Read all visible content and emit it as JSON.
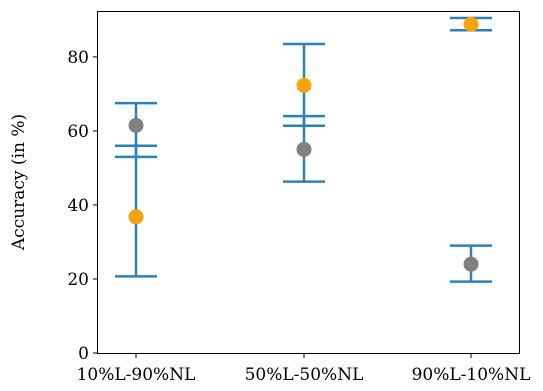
{
  "colors": {
    "errorbar": "#2a82b5",
    "series_orange": "#f5a40c",
    "series_gray": "#808080",
    "axis": "#000000"
  },
  "chart_data": {
    "type": "scatter",
    "ylabel": "Accuracy (in %)",
    "xlabel": "",
    "title": "",
    "ylim": [
      0,
      92.4
    ],
    "yticks": [
      0,
      20,
      40,
      60,
      80
    ],
    "categories": [
      "10%L-90%NL",
      "50%L-50%NL",
      "90%L-10%NL"
    ],
    "grid": false,
    "legend": "none",
    "series": [
      {
        "color_key": "series_gray",
        "points": [
          {
            "category": "10%L-90%NL",
            "value": 61.5,
            "err_low": 53.0,
            "err_high": 67.5
          },
          {
            "category": "50%L-50%NL",
            "value": 55.0,
            "err_low": 46.3,
            "err_high": 64.0
          },
          {
            "category": "90%L-10%NL",
            "value": 24.0,
            "err_low": 19.3,
            "err_high": 29.0
          }
        ]
      },
      {
        "color_key": "series_orange",
        "points": [
          {
            "category": "10%L-90%NL",
            "value": 36.8,
            "err_low": 20.7,
            "err_high": 56.0
          },
          {
            "category": "50%L-50%NL",
            "value": 72.3,
            "err_low": 61.4,
            "err_high": 83.5
          },
          {
            "category": "90%L-10%NL",
            "value": 88.8,
            "err_low": 87.2,
            "err_high": 90.5
          }
        ]
      }
    ]
  }
}
